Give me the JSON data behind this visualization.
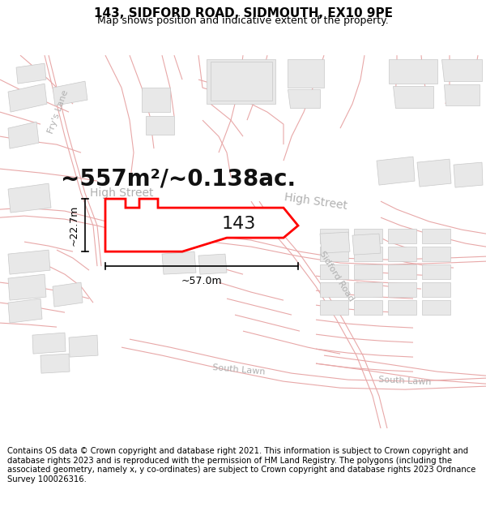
{
  "title": "143, SIDFORD ROAD, SIDMOUTH, EX10 9PE",
  "subtitle": "Map shows position and indicative extent of the property.",
  "footer": "Contains OS data © Crown copyright and database right 2021. This information is subject to Crown copyright and database rights 2023 and is reproduced with the permission of HM Land Registry. The polygons (including the associated geometry, namely x, y co-ordinates) are subject to Crown copyright and database rights 2023 Ordnance Survey 100026316.",
  "area_label": "~557m²/~0.138ac.",
  "width_label": "~57.0m",
  "height_label": "~22.7m",
  "property_label": "143",
  "background_color": "#ffffff",
  "road_line_color": "#e8a8a8",
  "road_line_lw": 0.8,
  "building_fill": "#e8e8e8",
  "building_edge": "#c8c8c8",
  "plot_fill": "#ffffff",
  "plot_edge": "#ff0000",
  "plot_lw": 2.0,
  "street_label_color": "#b0b0b0",
  "dim_color": "#000000",
  "title_fontsize": 11,
  "subtitle_fontsize": 9,
  "footer_fontsize": 7.2,
  "area_fontsize": 20,
  "label_fontsize": 16,
  "street_fontsize": 10
}
